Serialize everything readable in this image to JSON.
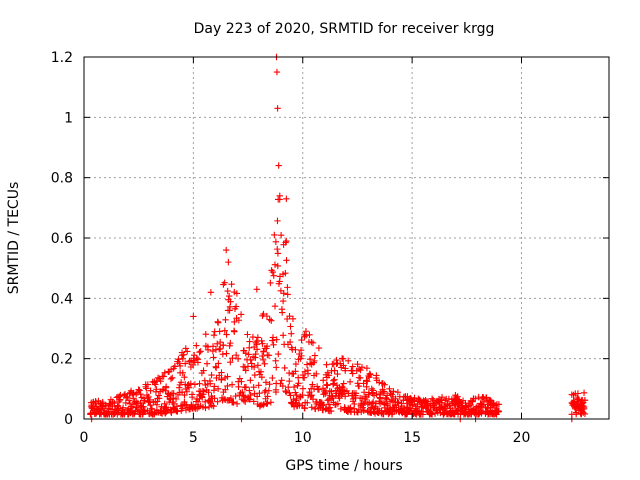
{
  "chart_data": {
    "type": "scatter",
    "title": "Day 223 of 2020, SRMTID for receiver krgg",
    "xlabel": "GPS time / hours",
    "ylabel": "SRMTID / TECUs",
    "xlim": [
      0,
      24
    ],
    "ylim": [
      0,
      1.2
    ],
    "x_ticks": [
      0,
      5,
      10,
      15,
      20
    ],
    "x_tick_labels": [
      "0",
      "5",
      "10",
      "15",
      "20"
    ],
    "y_ticks": [
      0,
      0.2,
      0.4,
      0.6,
      0.8,
      1,
      1.2
    ],
    "y_tick_labels": [
      "0",
      "0.2",
      "0.4",
      "0.6",
      "0.8",
      "1",
      "1.2"
    ],
    "grid": true,
    "marker": "+",
    "color": "#ff0000",
    "envelope_hours": [
      0.3,
      1,
      2,
      3,
      4,
      4.8,
      5.3,
      6,
      6.5,
      7,
      7.5,
      8,
      8.5,
      8.8,
      9.2,
      9.7,
      10.2,
      11,
      12,
      13,
      14,
      15,
      16,
      17,
      17.5,
      18,
      18.5,
      19
    ],
    "envelope_upper": [
      0.06,
      0.06,
      0.09,
      0.12,
      0.17,
      0.26,
      0.25,
      0.36,
      0.52,
      0.42,
      0.3,
      0.33,
      0.42,
      0.78,
      0.65,
      0.26,
      0.3,
      0.22,
      0.2,
      0.17,
      0.1,
      0.07,
      0.07,
      0.08,
      0.05,
      0.08,
      0.07,
      0.05
    ],
    "isolated_points": [
      {
        "x": 0.35,
        "y": 0.0
      },
      {
        "x": 7.2,
        "y": 0.0
      },
      {
        "x": 17.2,
        "y": 0.0
      },
      {
        "x": 17.9,
        "y": 0.0
      },
      {
        "x": 22.3,
        "y": 0.0
      },
      {
        "x": 8.8,
        "y": 1.2
      },
      {
        "x": 8.82,
        "y": 1.15
      },
      {
        "x": 8.85,
        "y": 1.03
      },
      {
        "x": 8.9,
        "y": 0.84
      },
      {
        "x": 8.95,
        "y": 0.74
      },
      {
        "x": 8.7,
        "y": 0.61
      },
      {
        "x": 9.25,
        "y": 0.73
      },
      {
        "x": 9.1,
        "y": 0.48
      },
      {
        "x": 6.5,
        "y": 0.56
      },
      {
        "x": 6.6,
        "y": 0.52
      },
      {
        "x": 5.8,
        "y": 0.42
      },
      {
        "x": 5.0,
        "y": 0.34
      },
      {
        "x": 7.9,
        "y": 0.43
      }
    ],
    "late_cluster": {
      "x_range": [
        22.3,
        22.9
      ],
      "y_max": 0.1
    }
  }
}
